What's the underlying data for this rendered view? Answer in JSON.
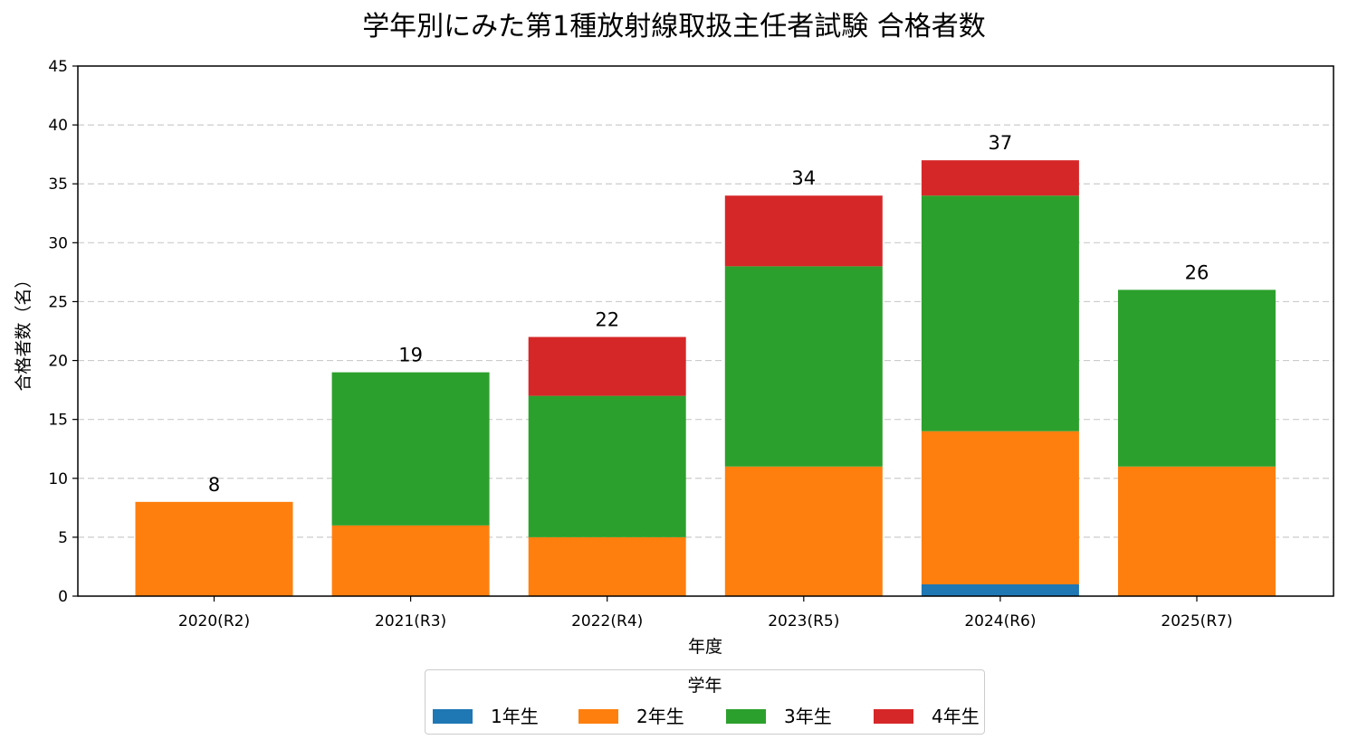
{
  "chart_data": {
    "type": "bar",
    "stacked": true,
    "title": "学年別にみた第1種放射線取扱主任者試験 合格者数",
    "xlabel": "年度",
    "ylabel": "合格者数（名）",
    "categories": [
      "2020(R2)",
      "2021(R3)",
      "2022(R4)",
      "2023(R5)",
      "2024(R6)",
      "2025(R7)"
    ],
    "series": [
      {
        "name": "1年生",
        "color": "#1f77b4",
        "values": [
          0,
          0,
          0,
          0,
          1,
          0
        ]
      },
      {
        "name": "2年生",
        "color": "#ff7f0e",
        "values": [
          8,
          6,
          5,
          11,
          13,
          11
        ]
      },
      {
        "name": "3年生",
        "color": "#2ca02c",
        "values": [
          0,
          13,
          12,
          17,
          20,
          15
        ]
      },
      {
        "name": "4年生",
        "color": "#d62728",
        "values": [
          0,
          0,
          5,
          6,
          3,
          0
        ]
      }
    ],
    "totals": [
      "8",
      "19",
      "22",
      "34",
      "37",
      "26"
    ],
    "ylim": [
      0,
      45
    ],
    "yticks": [
      "0",
      "5",
      "10",
      "15",
      "20",
      "25",
      "30",
      "35",
      "40",
      "45"
    ],
    "grid": "y-dashed",
    "legend": {
      "title": "学年",
      "placement": "bottom-center"
    }
  }
}
